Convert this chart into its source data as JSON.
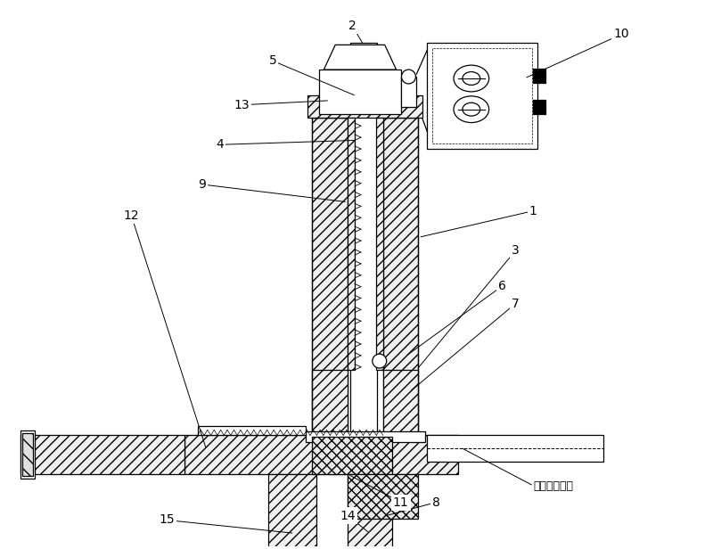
{
  "bg_color": "#ffffff",
  "line_color": "#000000",
  "chinese_label": "展开定位支笼",
  "figsize": [
    8.0,
    6.16
  ],
  "dpi": 100
}
